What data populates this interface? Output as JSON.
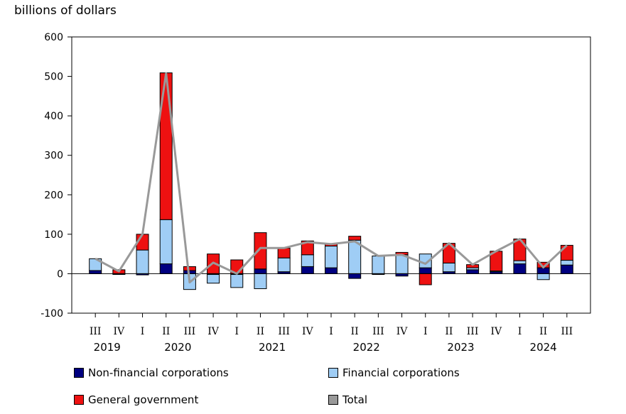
{
  "chart_data": {
    "type": "bar",
    "stacked": true,
    "ylabel": "billions of dollars",
    "ylim": [
      -100,
      600
    ],
    "yticks": [
      600,
      500,
      400,
      300,
      200,
      100,
      0,
      -100
    ],
    "categories": [
      "III",
      "IV",
      "I",
      "II",
      "III",
      "IV",
      "I",
      "II",
      "III",
      "IV",
      "I",
      "II",
      "III",
      "IV",
      "I",
      "II",
      "III",
      "IV",
      "I",
      "II",
      "III"
    ],
    "years": [
      {
        "label": "2019",
        "start": 0,
        "end": 1
      },
      {
        "label": "2020",
        "start": 2,
        "end": 5
      },
      {
        "label": "2021",
        "start": 6,
        "end": 9
      },
      {
        "label": "2022",
        "start": 10,
        "end": 13
      },
      {
        "label": "2023",
        "start": 14,
        "end": 17
      },
      {
        "label": "2024",
        "start": 18,
        "end": 20
      }
    ],
    "series": [
      {
        "name": "Non-financial corporations",
        "color": "#000080",
        "values": [
          8,
          -2,
          -3,
          25,
          8,
          -2,
          -2,
          12,
          5,
          18,
          15,
          -12,
          -2,
          -6,
          15,
          5,
          10,
          5,
          25,
          15,
          22
        ]
      },
      {
        "name": "Financial corporations",
        "color": "#9fcdf5",
        "values": [
          30,
          0,
          60,
          112,
          -40,
          -22,
          -33,
          -38,
          35,
          30,
          55,
          85,
          45,
          48,
          35,
          22,
          5,
          2,
          8,
          -15,
          12
        ]
      },
      {
        "name": "General government",
        "color": "#ee1111",
        "values": [
          0,
          10,
          40,
          372,
          10,
          50,
          35,
          92,
          25,
          35,
          5,
          10,
          0,
          6,
          -28,
          50,
          8,
          50,
          55,
          14,
          38
        ]
      },
      {
        "name": "Total",
        "color": "#999999",
        "type": "line",
        "values": [
          38,
          6,
          100,
          508,
          -22,
          28,
          0,
          65,
          65,
          80,
          75,
          82,
          45,
          48,
          25,
          77,
          23,
          57,
          88,
          16,
          72
        ]
      }
    ]
  },
  "legend": [
    {
      "label": "Non-financial corporations",
      "color": "#000080"
    },
    {
      "label": "Financial corporations",
      "color": "#9fcdf5"
    },
    {
      "label": "General government",
      "color": "#ee1111"
    },
    {
      "label": "Total",
      "color": "#999999"
    }
  ]
}
